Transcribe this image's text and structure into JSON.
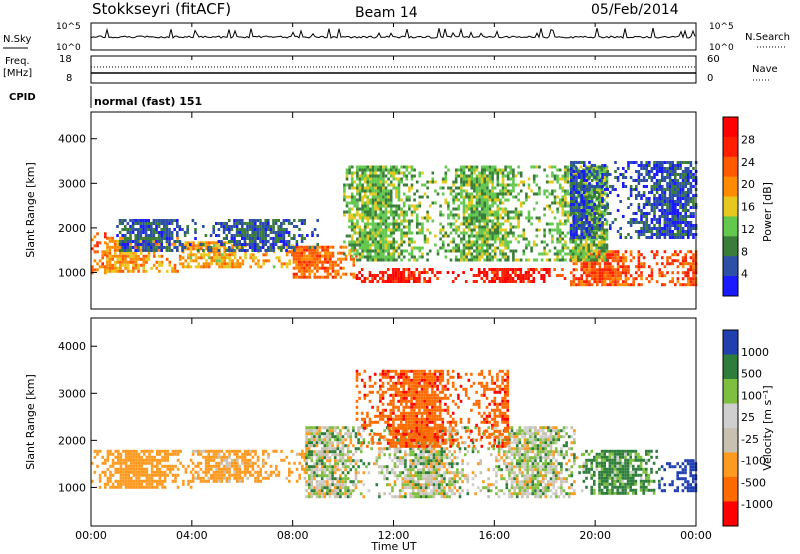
{
  "header": {
    "station": "Stokkseyri (fitACF)",
    "beam": "Beam 14",
    "date": "05/Feb/2014"
  },
  "panels": {
    "nsky_label": "N.Sky",
    "nsky_ticks": [
      "10^5",
      "10^0"
    ],
    "nsky_right_ticks": [
      "10^5",
      "10^0"
    ],
    "nsearch_label": "N.Search",
    "freq_label_top": "Freq.",
    "freq_label_unit": "[MHz]",
    "freq_ticks": [
      "18",
      "8"
    ],
    "nave_ticks": [
      "60",
      "0"
    ],
    "nave_label": "Nave",
    "cpid_label": "CPID",
    "cpid_value": "normal (fast) 151"
  },
  "axes": {
    "xlabel": "Time UT",
    "x_ticks": [
      "00:00",
      "04:00",
      "08:00",
      "12:00",
      "16:00",
      "20:00",
      "00:00"
    ],
    "ylabel": "Slant Range [km]",
    "y_ticks": [
      "4000",
      "3000",
      "2000",
      "1000"
    ]
  },
  "power_bar": {
    "label": "Power [dB]",
    "ticks": [
      "28",
      "24",
      "20",
      "16",
      "12",
      "8",
      "4"
    ]
  },
  "velocity_bar": {
    "label": "Velocity [m s⁻¹]",
    "ticks": [
      "1000",
      "500",
      "100",
      "25",
      "-25",
      "-100",
      "-500",
      "-1000"
    ]
  },
  "colors": {
    "power_scale": [
      "#1a1aff",
      "#2e4fa6",
      "#3a7d3a",
      "#62c84e",
      "#e6c81e",
      "#ff8c00",
      "#ff5a00",
      "#ff1e00",
      "#ff0000"
    ],
    "velocity_scale": [
      "#2040b0",
      "#2e7d3a",
      "#7fbf3f",
      "#cfcfcf",
      "#c8c0b0",
      "#ff9a20",
      "#ff6a00",
      "#ff0000"
    ]
  },
  "chart_data": [
    {
      "type": "heatmap",
      "name": "power",
      "xlabel": "Time UT",
      "ylabel": "Slant Range [km]",
      "colorbar_label": "Power [dB]",
      "xlim_hours": [
        0,
        24
      ],
      "ylim_km": [
        180,
        4600
      ],
      "clim_db": [
        0,
        32
      ],
      "bands": [
        {
          "x_start": 0.0,
          "x_end": 0.6,
          "range_start": 1000,
          "range_end": 1900,
          "value": 22
        },
        {
          "x_start": 0.6,
          "x_end": 3.5,
          "range_start": 1050,
          "range_end": 1800,
          "value": 20
        },
        {
          "x_start": 3.5,
          "x_end": 8.0,
          "range_start": 1100,
          "range_end": 1700,
          "value": 18
        },
        {
          "x_start": 8.0,
          "x_end": 10.5,
          "range_start": 900,
          "range_end": 1600,
          "value": 22
        },
        {
          "x_start": 10.5,
          "x_end": 19.0,
          "range_start": 800,
          "range_end": 1100,
          "value": 28
        },
        {
          "x_start": 19.0,
          "x_end": 24.0,
          "range_start": 750,
          "range_end": 1500,
          "value": 24
        },
        {
          "x_start": 10.0,
          "x_end": 20.5,
          "range_start": 1300,
          "range_end": 3400,
          "value": 12
        },
        {
          "x_start": 1.0,
          "x_end": 9.0,
          "range_start": 1500,
          "range_end": 2200,
          "value": 6
        },
        {
          "x_start": 19.0,
          "x_end": 24.0,
          "range_start": 1800,
          "range_end": 3500,
          "value": 5
        }
      ]
    },
    {
      "type": "heatmap",
      "name": "velocity",
      "xlabel": "Time UT",
      "ylabel": "Slant Range [km]",
      "colorbar_label": "Velocity [m s⁻¹]",
      "xlim_hours": [
        0,
        24
      ],
      "ylim_km": [
        180,
        4600
      ],
      "clim_ms": [
        -1000,
        1000
      ],
      "bands": [
        {
          "x_start": 0.0,
          "x_end": 4.0,
          "range_start": 1000,
          "range_end": 1800,
          "value": -300
        },
        {
          "x_start": 4.0,
          "x_end": 8.5,
          "range_start": 1100,
          "range_end": 1800,
          "value": -200
        },
        {
          "x_start": 8.5,
          "x_end": 19.5,
          "range_start": 800,
          "range_end": 2300,
          "value": 0
        },
        {
          "x_start": 10.5,
          "x_end": 16.5,
          "range_start": 1900,
          "range_end": 3500,
          "value": -700
        },
        {
          "x_start": 19.5,
          "x_end": 22.5,
          "range_start": 900,
          "range_end": 1800,
          "value": 150
        },
        {
          "x_start": 22.5,
          "x_end": 24.0,
          "range_start": 900,
          "range_end": 1600,
          "value": 700
        }
      ]
    }
  ]
}
